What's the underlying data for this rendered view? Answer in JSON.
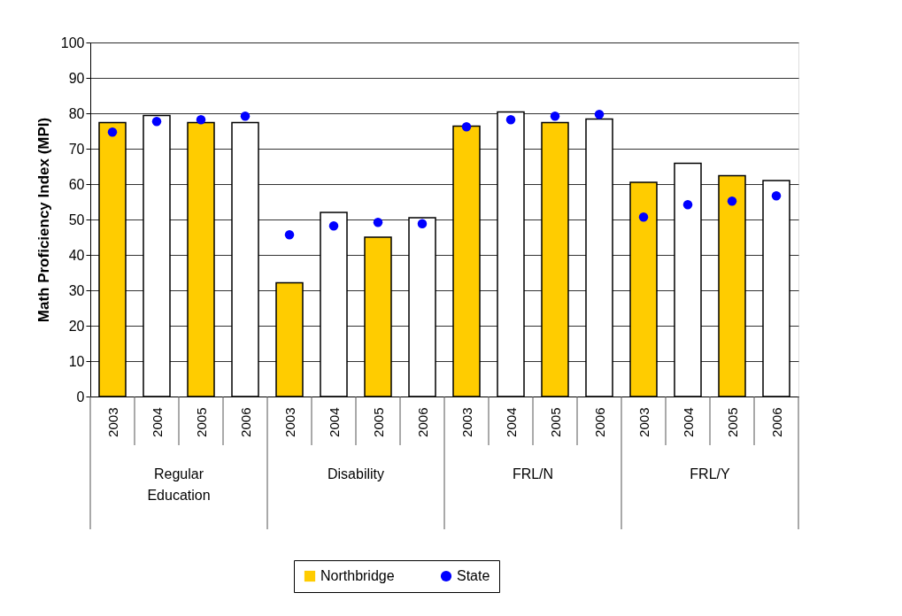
{
  "chart_data": {
    "type": "bar",
    "ylabel": "Math Proficiency Index (MPI)",
    "categories": [
      "2003",
      "2004",
      "2005",
      "2006",
      "2003",
      "2004",
      "2005",
      "2006",
      "2003",
      "2004",
      "2005",
      "2006",
      "2003",
      "2004",
      "2005",
      "2006"
    ],
    "series": [
      {
        "name": "Northbridge",
        "color": "#ffcc00",
        "colors": [
          "#ffcc00",
          "#ffffff",
          "#ffcc00",
          "#ffffff",
          "#ffcc00",
          "#ffffff",
          "#ffcc00",
          "#ffffff",
          "#ffcc00",
          "#ffffff",
          "#ffcc00",
          "#ffffff",
          "#ffcc00",
          "#ffffff",
          "#ffcc00",
          "#ffffff"
        ],
        "values": [
          77.4,
          79.4,
          77.4,
          77.4,
          32.1,
          52.0,
          45.0,
          50.5,
          76.4,
          80.4,
          77.4,
          78.4,
          60.5,
          65.9,
          62.4,
          61.0
        ]
      },
      {
        "name": "State",
        "type": "scatter",
        "color": "#0000ff",
        "marker": "circle",
        "values": [
          74.7,
          77.7,
          78.2,
          79.2,
          45.7,
          48.2,
          49.2,
          48.8,
          76.2,
          78.2,
          79.2,
          79.7,
          50.7,
          54.2,
          55.2,
          56.7
        ]
      }
    ],
    "annotations": [
      "Regular Education",
      "Disability",
      "FRL/N",
      "FRL/Y"
    ],
    "ylim": [
      0,
      100
    ],
    "yticks": [
      0,
      10,
      20,
      30,
      40,
      50,
      60,
      70,
      80,
      90,
      100
    ],
    "grid": "y",
    "legend": "bottom"
  }
}
